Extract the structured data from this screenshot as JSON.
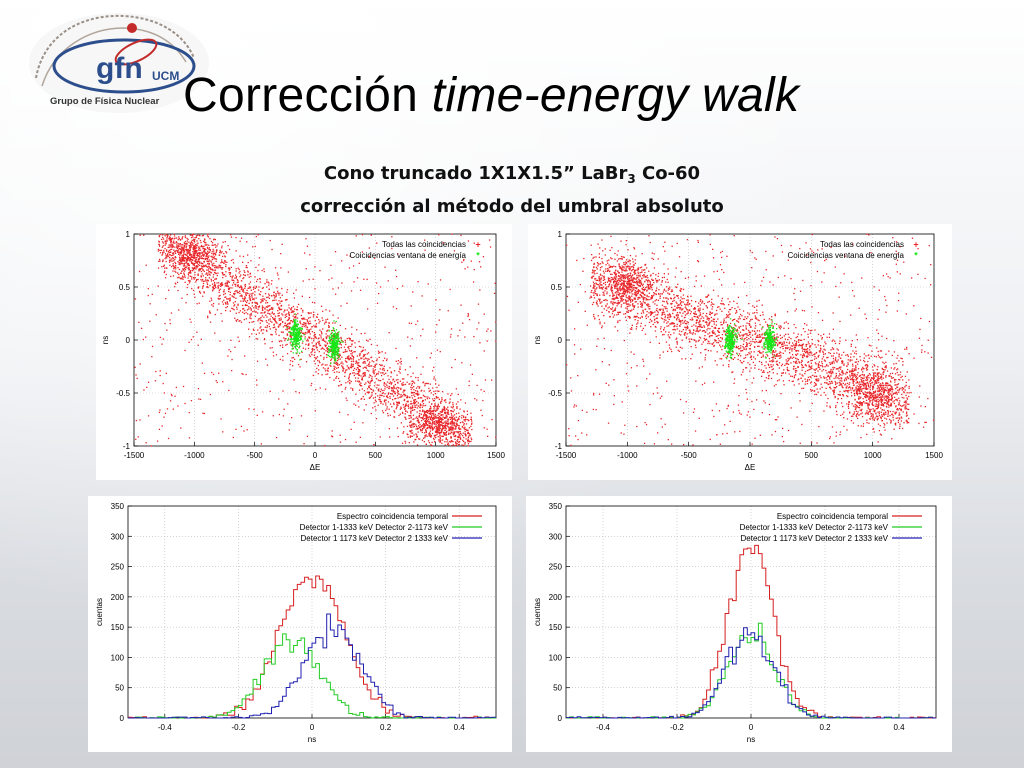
{
  "slide": {
    "logo_text": "gfn",
    "logo_sub": "UCM",
    "logo_caption": "Grupo de Física Nuclear",
    "title_plain": "Corrección ",
    "title_italic": "time-energy walk",
    "subtitle_line1_a": "Cono truncado 1X1X1.5” LaBr",
    "subtitle_line1_sub": "3",
    "subtitle_line1_b": " Co-60",
    "subtitle_line2": "corrección al  método del umbral absoluto"
  },
  "chart_data": [
    {
      "id": "scatter-before",
      "type": "scatter",
      "xlabel": "ΔE",
      "ylabel": "ns",
      "xlim": [
        -1500,
        1500
      ],
      "ylim": [
        -1,
        1
      ],
      "xticks": [
        -1500,
        -1000,
        -500,
        0,
        500,
        1000,
        1500
      ],
      "yticks": [
        1,
        0.5,
        0,
        -0.5,
        -1
      ],
      "ytick_labels": [
        "1",
        "0.5",
        "0",
        "-0.5",
        "-1"
      ],
      "grid": true,
      "legend": "top-right",
      "series": [
        {
          "name": "Todas las coincidencias",
          "marker": "+",
          "color": "#e8262a",
          "clusters": [
            {
              "x": -1000,
              "y": 0.8,
              "sx": 110,
              "sy": 0.1,
              "n": 420
            },
            {
              "x": 1000,
              "y": -0.8,
              "sx": 110,
              "sy": 0.1,
              "n": 420
            }
          ],
          "band": {
            "x_from": -1300,
            "x_to": 1300,
            "y_at_x_from": 0.95,
            "y_at_x_to": -0.95,
            "spread": 0.15,
            "n": 2600
          }
        },
        {
          "name": "Coicidencias ventana de energía",
          "marker": "*",
          "color": "#19e619",
          "clusters": [
            {
              "x": -160,
              "y": 0.05,
              "sx": 22,
              "sy": 0.07,
              "n": 260
            },
            {
              "x": 160,
              "y": -0.05,
              "sx": 22,
              "sy": 0.07,
              "n": 260
            }
          ]
        }
      ]
    },
    {
      "id": "scatter-after",
      "type": "scatter",
      "xlabel": "ΔE",
      "ylabel": "ns",
      "xlim": [
        -1500,
        1500
      ],
      "ylim": [
        -1,
        1
      ],
      "xticks": [
        -1500,
        -1000,
        -500,
        0,
        500,
        1000,
        1500
      ],
      "yticks": [
        1,
        0.5,
        0,
        -0.5,
        -1
      ],
      "ytick_labels": [
        "1",
        "0.5",
        "0",
        "-0.5",
        "-1"
      ],
      "grid": true,
      "legend": "top-right",
      "series": [
        {
          "name": "Todas las coincidencias",
          "marker": "+",
          "color": "#e8262a",
          "clusters": [
            {
              "x": -1000,
              "y": 0.55,
              "sx": 110,
              "sy": 0.12,
              "n": 420
            },
            {
              "x": 1000,
              "y": -0.55,
              "sx": 110,
              "sy": 0.12,
              "n": 420
            }
          ],
          "band": {
            "x_from": -1300,
            "x_to": 1300,
            "y_at_x_from": 0.55,
            "y_at_x_to": -0.55,
            "spread": 0.16,
            "n": 2600
          }
        },
        {
          "name": "Coicidencias ventana de energía",
          "marker": "*",
          "color": "#19e619",
          "clusters": [
            {
              "x": -160,
              "y": 0.0,
              "sx": 22,
              "sy": 0.06,
              "n": 260
            },
            {
              "x": 160,
              "y": 0.0,
              "sx": 22,
              "sy": 0.06,
              "n": 260
            }
          ]
        }
      ]
    },
    {
      "id": "hist-before",
      "type": "line",
      "xlabel": "ns",
      "ylabel": "cuentas",
      "xlim": [
        -0.5,
        0.5
      ],
      "ylim": [
        0,
        350
      ],
      "xticks": [
        -0.4,
        -0.2,
        0,
        0.2,
        0.4
      ],
      "xtick_labels": [
        "-0.4",
        "-0.2",
        "0",
        "0.2",
        "0.4"
      ],
      "yticks": [
        0,
        50,
        100,
        150,
        200,
        250,
        300,
        350
      ],
      "grid": true,
      "legend": "top-right",
      "series": [
        {
          "name": "Espectro coincidencia temporal",
          "color": "#d62020",
          "shape": {
            "mu": 0.0,
            "sigma": 0.085,
            "peak": 238
          }
        },
        {
          "name": "Detector 1-1333 keV Detector 2-1173 keV",
          "color": "#22cc22",
          "shape": {
            "mu": -0.055,
            "sigma": 0.075,
            "peak": 135
          }
        },
        {
          "name": "Detector 1 1173 keV Detector 2 1333 keV",
          "color": "#2020b0",
          "shape": {
            "mu": 0.055,
            "sigma": 0.075,
            "peak": 152
          }
        }
      ]
    },
    {
      "id": "hist-after",
      "type": "line",
      "xlabel": "ns",
      "ylabel": "cuentas",
      "xlim": [
        -0.5,
        0.5
      ],
      "ylim": [
        0,
        350
      ],
      "xticks": [
        -0.4,
        -0.2,
        0,
        0.2,
        0.4
      ],
      "xtick_labels": [
        "-0.4",
        "-0.2",
        "0",
        "0.2",
        "0.4"
      ],
      "yticks": [
        0,
        50,
        100,
        150,
        200,
        250,
        300,
        350
      ],
      "grid": true,
      "legend": "top-right",
      "series": [
        {
          "name": "Espectro coincidencia temporal",
          "color": "#d62020",
          "shape": {
            "mu": 0.0,
            "sigma": 0.06,
            "peak": 280
          }
        },
        {
          "name": "Detector 1-1333 keV Detector 2-1173 keV",
          "color": "#22cc22",
          "shape": {
            "mu": 0.0,
            "sigma": 0.062,
            "peak": 140
          }
        },
        {
          "name": "Detector 1 1173 keV Detector 2 1333 keV",
          "color": "#2020b0",
          "shape": {
            "mu": 0.0,
            "sigma": 0.062,
            "peak": 148
          }
        }
      ]
    }
  ]
}
